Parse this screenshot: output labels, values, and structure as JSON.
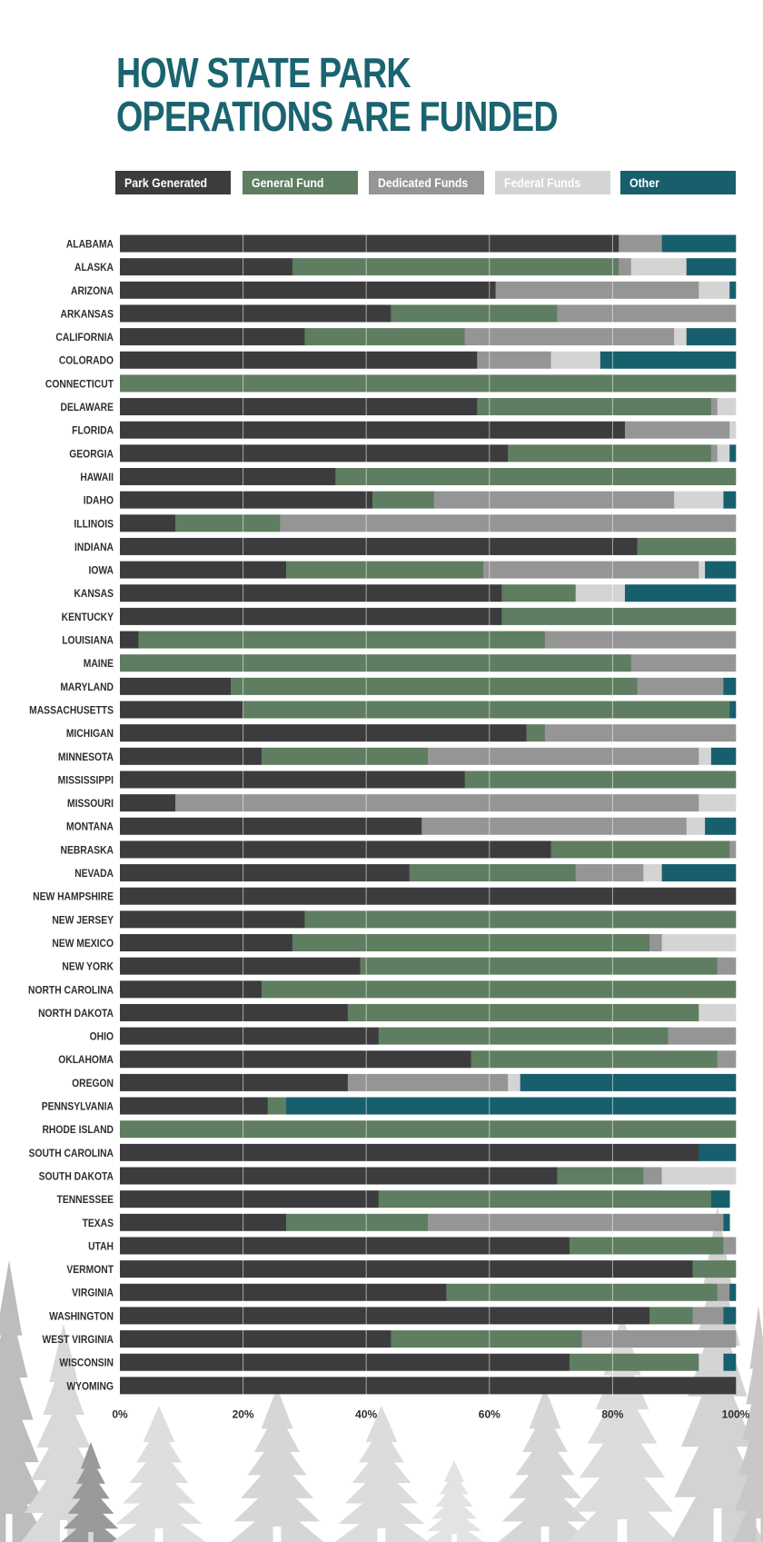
{
  "page": {
    "title_line1": "HOW STATE PARK",
    "title_line2": "OPERATIONS ARE FUNDED"
  },
  "chart_data": {
    "type": "bar",
    "orientation": "horizontal",
    "stacked": true,
    "xlim": [
      0,
      100
    ],
    "x_ticks": [
      "0%",
      "20%",
      "40%",
      "60%",
      "80%",
      "100%"
    ],
    "grid": "vertical",
    "legend_position": "top",
    "categories": [
      "ALABAMA",
      "ALASKA",
      "ARIZONA",
      "ARKANSAS",
      "CALIFORNIA",
      "COLORADO",
      "CONNECTICUT",
      "DELAWARE",
      "FLORIDA",
      "GEORGIA",
      "HAWAII",
      "IDAHO",
      "ILLINOIS",
      "INDIANA",
      "IOWA",
      "KANSAS",
      "KENTUCKY",
      "LOUISIANA",
      "MAINE",
      "MARYLAND",
      "MASSACHUSETTS",
      "MICHIGAN",
      "MINNESOTA",
      "MISSISSIPPI",
      "MISSOURI",
      "MONTANA",
      "NEBRASKA",
      "NEVADA",
      "NEW HAMPSHIRE",
      "NEW JERSEY",
      "NEW MEXICO",
      "NEW YORK",
      "NORTH CAROLINA",
      "NORTH DAKOTA",
      "OHIO",
      "OKLAHOMA",
      "OREGON",
      "PENNSYLVANIA",
      "RHODE ISLAND",
      "SOUTH CAROLINA",
      "SOUTH DAKOTA",
      "TENNESSEE",
      "TEXAS",
      "UTAH",
      "VERMONT",
      "VIRGINIA",
      "WASHINGTON",
      "WEST VIRGINIA",
      "WISCONSIN",
      "WYOMING"
    ],
    "series": [
      {
        "name": "Park Generated",
        "color": "#3c3c3e",
        "text_color": "#ffffff",
        "values": [
          81,
          28,
          61,
          44,
          30,
          58,
          0,
          58,
          82,
          63,
          35,
          41,
          9,
          84,
          27,
          62,
          62,
          3,
          0,
          18,
          20,
          66,
          23,
          56,
          9,
          49,
          70,
          47,
          100,
          30,
          28,
          39,
          23,
          37,
          42,
          57,
          37,
          24,
          0,
          94,
          71,
          42,
          27,
          73,
          93,
          53,
          86,
          44,
          73,
          100
        ]
      },
      {
        "name": "General Fund",
        "color": "#5f7d60",
        "text_color": "#ffffff",
        "values": [
          0,
          53,
          0,
          27,
          26,
          0,
          100,
          38,
          0,
          33,
          65,
          10,
          17,
          16,
          32,
          12,
          38,
          66,
          83,
          66,
          79,
          3,
          27,
          44,
          0,
          0,
          29,
          27,
          0,
          70,
          58,
          58,
          77,
          57,
          47,
          40,
          0,
          3,
          100,
          0,
          14,
          54,
          23,
          25,
          7,
          44,
          7,
          31,
          21,
          0
        ]
      },
      {
        "name": "Dedicated Funds",
        "color": "#959596",
        "text_color": "#ffffff",
        "values": [
          7,
          2,
          33,
          29,
          34,
          12,
          0,
          1,
          17,
          1,
          0,
          39,
          74,
          0,
          35,
          0,
          0,
          31,
          17,
          14,
          0,
          31,
          44,
          0,
          85,
          43,
          1,
          11,
          0,
          0,
          2,
          3,
          0,
          0,
          11,
          3,
          26,
          0,
          0,
          0,
          3,
          0,
          48,
          2,
          0,
          2,
          5,
          25,
          0,
          0
        ]
      },
      {
        "name": "Federal Funds",
        "color": "#d4d4d5",
        "text_color": "#ffffff",
        "values": [
          0,
          9,
          5,
          0,
          2,
          8,
          0,
          3,
          1,
          2,
          0,
          8,
          0,
          0,
          1,
          8,
          0,
          0,
          0,
          0,
          0,
          0,
          2,
          0,
          6,
          3,
          0,
          3,
          0,
          0,
          12,
          0,
          0,
          6,
          0,
          0,
          2,
          0,
          0,
          0,
          12,
          0,
          0,
          0,
          0,
          0,
          0,
          0,
          4,
          0
        ]
      },
      {
        "name": "Other",
        "color": "#175f6d",
        "text_color": "#ffffff",
        "values": [
          12,
          8,
          1,
          0,
          8,
          22,
          0,
          0,
          0,
          1,
          0,
          2,
          0,
          0,
          5,
          18,
          0,
          0,
          0,
          2,
          1,
          0,
          4,
          0,
          0,
          5,
          0,
          12,
          0,
          0,
          0,
          0,
          0,
          0,
          0,
          0,
          35,
          73,
          0,
          6,
          0,
          3,
          1,
          0,
          0,
          1,
          2,
          0,
          2,
          0
        ]
      }
    ]
  }
}
